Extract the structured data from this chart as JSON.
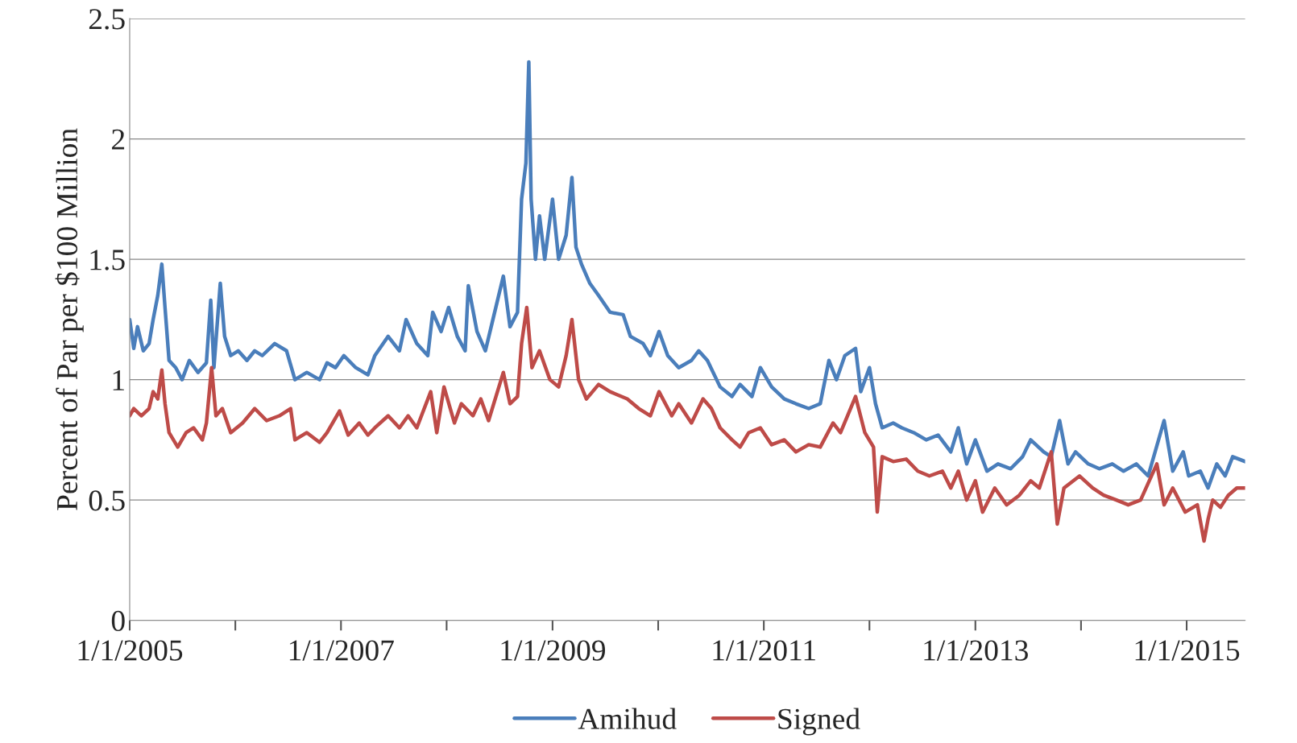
{
  "chart_data": {
    "type": "line",
    "ylabel": "Percent of Par per $100 Million",
    "xlim": [
      "2005-01-01",
      "2015-07-22"
    ],
    "ylim": [
      0,
      2.5
    ],
    "yticks": [
      0,
      0.5,
      1,
      1.5,
      2,
      2.5
    ],
    "xticks": [
      {
        "value": "2005-01-01",
        "label": "1/1/2005"
      },
      {
        "value": "2006-01-01",
        "label": null
      },
      {
        "value": "2007-01-01",
        "label": "1/1/2007"
      },
      {
        "value": "2008-01-01",
        "label": null
      },
      {
        "value": "2009-01-01",
        "label": "1/1/2009"
      },
      {
        "value": "2010-01-01",
        "label": null
      },
      {
        "value": "2011-01-01",
        "label": "1/1/2011"
      },
      {
        "value": "2012-01-01",
        "label": null
      },
      {
        "value": "2013-01-01",
        "label": "1/1/2013"
      },
      {
        "value": "2014-01-01",
        "label": null
      },
      {
        "value": "2015-01-01",
        "label": "1/1/2015"
      }
    ],
    "grid": "y",
    "legend": "bottom",
    "line_style": "solid",
    "marker": "none",
    "series": [
      {
        "name": "Amihud",
        "color": "#4a7ebb",
        "x": [
          "2005-01-01",
          "2005-01-15",
          "2005-01-28",
          "2005-02-17",
          "2005-03-09",
          "2005-03-23",
          "2005-04-08",
          "2005-04-22",
          "2005-05-03",
          "2005-05-17",
          "2005-06-09",
          "2005-07-01",
          "2005-07-26",
          "2005-08-25",
          "2005-09-23",
          "2005-10-08",
          "2005-10-19",
          "2005-11-10",
          "2005-11-25",
          "2005-12-16",
          "2006-01-11",
          "2006-02-10",
          "2006-03-09",
          "2006-04-04",
          "2006-05-17",
          "2006-06-27",
          "2006-07-26",
          "2006-09-05",
          "2006-10-19",
          "2006-11-14",
          "2006-12-13",
          "2007-01-11",
          "2007-02-21",
          "2007-04-04",
          "2007-04-28",
          "2007-06-13",
          "2007-07-22",
          "2007-08-14",
          "2007-09-20",
          "2007-10-28",
          "2007-11-14",
          "2007-12-13",
          "2008-01-08",
          "2008-02-07",
          "2008-03-05",
          "2008-03-16",
          "2008-04-15",
          "2008-05-14",
          "2008-06-09",
          "2008-07-15",
          "2008-08-07",
          "2008-09-02",
          "2008-09-16",
          "2008-10-01",
          "2008-10-11",
          "2008-10-19",
          "2008-11-03",
          "2008-11-17",
          "2008-12-05",
          "2009-01-01",
          "2009-01-22",
          "2009-02-17",
          "2009-03-09",
          "2009-03-23",
          "2009-04-11",
          "2009-05-10",
          "2009-06-09",
          "2009-07-19",
          "2009-09-02",
          "2009-09-27",
          "2009-11-10",
          "2009-12-05",
          "2010-01-04",
          "2010-02-03",
          "2010-03-13",
          "2010-04-26",
          "2010-05-21",
          "2010-06-20",
          "2010-08-03",
          "2010-09-13",
          "2010-10-11",
          "2010-11-21",
          "2010-12-20",
          "2011-01-28",
          "2011-03-13",
          "2011-04-22",
          "2011-06-05",
          "2011-07-15",
          "2011-08-14",
          "2011-09-09",
          "2011-10-08",
          "2011-11-14",
          "2011-12-02",
          "2012-01-01",
          "2012-01-22",
          "2012-02-14",
          "2012-03-23",
          "2012-04-22",
          "2012-06-02",
          "2012-07-15",
          "2012-08-25",
          "2012-10-08",
          "2012-11-03",
          "2012-12-02",
          "2013-01-01",
          "2013-02-10",
          "2013-03-20",
          "2013-05-03",
          "2013-06-13",
          "2013-07-11",
          "2013-08-25",
          "2013-09-20",
          "2013-10-19",
          "2013-11-17",
          "2013-12-13",
          "2014-01-26",
          "2014-03-05",
          "2014-04-19",
          "2014-05-28",
          "2014-07-11",
          "2014-08-21",
          "2014-10-15",
          "2014-11-14",
          "2014-12-20",
          "2015-01-08",
          "2015-02-17",
          "2015-03-16",
          "2015-04-15",
          "2015-05-14",
          "2015-06-09",
          "2015-07-22"
        ],
        "values": [
          1.25,
          1.13,
          1.22,
          1.12,
          1.15,
          1.25,
          1.35,
          1.48,
          1.3,
          1.08,
          1.05,
          1.0,
          1.08,
          1.03,
          1.07,
          1.33,
          1.05,
          1.4,
          1.18,
          1.1,
          1.12,
          1.08,
          1.12,
          1.1,
          1.15,
          1.12,
          1.0,
          1.03,
          1.0,
          1.07,
          1.05,
          1.1,
          1.05,
          1.02,
          1.1,
          1.18,
          1.12,
          1.25,
          1.15,
          1.1,
          1.28,
          1.2,
          1.3,
          1.18,
          1.12,
          1.39,
          1.2,
          1.12,
          1.25,
          1.43,
          1.22,
          1.28,
          1.75,
          1.9,
          2.32,
          1.75,
          1.5,
          1.68,
          1.5,
          1.75,
          1.5,
          1.6,
          1.84,
          1.55,
          1.48,
          1.4,
          1.35,
          1.28,
          1.27,
          1.18,
          1.15,
          1.1,
          1.2,
          1.1,
          1.05,
          1.08,
          1.12,
          1.08,
          0.97,
          0.93,
          0.98,
          0.93,
          1.05,
          0.97,
          0.92,
          0.9,
          0.88,
          0.9,
          1.08,
          1.0,
          1.1,
          1.13,
          0.95,
          1.05,
          0.9,
          0.8,
          0.82,
          0.8,
          0.78,
          0.75,
          0.77,
          0.7,
          0.8,
          0.65,
          0.75,
          0.62,
          0.65,
          0.63,
          0.68,
          0.75,
          0.7,
          0.68,
          0.83,
          0.65,
          0.7,
          0.65,
          0.63,
          0.65,
          0.62,
          0.65,
          0.6,
          0.83,
          0.62,
          0.7,
          0.6,
          0.62,
          0.55,
          0.65,
          0.6,
          0.68,
          0.66
        ]
      },
      {
        "name": "Signed",
        "color": "#be4b48",
        "x": [
          "2005-01-01",
          "2005-01-15",
          "2005-02-10",
          "2005-03-09",
          "2005-03-23",
          "2005-04-08",
          "2005-04-22",
          "2005-05-03",
          "2005-05-17",
          "2005-06-16",
          "2005-07-15",
          "2005-08-10",
          "2005-09-09",
          "2005-09-23",
          "2005-10-11",
          "2005-10-26",
          "2005-11-17",
          "2005-12-16",
          "2006-01-26",
          "2006-03-09",
          "2006-04-19",
          "2006-06-02",
          "2006-07-11",
          "2006-07-26",
          "2006-09-05",
          "2006-10-19",
          "2006-11-14",
          "2006-12-27",
          "2007-01-26",
          "2007-03-05",
          "2007-04-04",
          "2007-04-28",
          "2007-06-13",
          "2007-07-22",
          "2007-08-21",
          "2007-09-20",
          "2007-11-07",
          "2007-11-28",
          "2007-12-23",
          "2008-01-28",
          "2008-02-21",
          "2008-04-01",
          "2008-04-28",
          "2008-05-25",
          "2008-07-15",
          "2008-08-07",
          "2008-09-02",
          "2008-09-16",
          "2008-10-04",
          "2008-10-22",
          "2008-11-17",
          "2008-12-23",
          "2009-01-22",
          "2009-02-17",
          "2009-03-09",
          "2009-04-01",
          "2009-04-28",
          "2009-06-09",
          "2009-07-19",
          "2009-09-16",
          "2009-10-26",
          "2009-12-05",
          "2010-01-04",
          "2010-02-17",
          "2010-03-13",
          "2010-04-26",
          "2010-06-05",
          "2010-07-04",
          "2010-08-03",
          "2010-09-13",
          "2010-10-11",
          "2010-11-10",
          "2010-12-20",
          "2011-01-28",
          "2011-03-13",
          "2011-04-22",
          "2011-06-05",
          "2011-07-15",
          "2011-08-28",
          "2011-09-23",
          "2011-11-14",
          "2011-12-16",
          "2012-01-15",
          "2012-01-28",
          "2012-02-14",
          "2012-03-23",
          "2012-05-07",
          "2012-06-16",
          "2012-07-26",
          "2012-09-09",
          "2012-10-08",
          "2012-11-03",
          "2012-12-02",
          "2013-01-01",
          "2013-01-26",
          "2013-03-09",
          "2013-04-19",
          "2013-06-02",
          "2013-07-11",
          "2013-08-10",
          "2013-09-20",
          "2013-10-11",
          "2013-11-03",
          "2013-12-27",
          "2014-02-10",
          "2014-03-20",
          "2014-05-03",
          "2014-06-13",
          "2014-07-26",
          "2014-09-20",
          "2014-10-15",
          "2014-11-14",
          "2014-12-27",
          "2015-02-07",
          "2015-03-02",
          "2015-03-16",
          "2015-04-01",
          "2015-04-28",
          "2015-05-25",
          "2015-06-23",
          "2015-07-22"
        ],
        "values": [
          0.85,
          0.88,
          0.85,
          0.88,
          0.95,
          0.92,
          1.04,
          0.9,
          0.78,
          0.72,
          0.78,
          0.8,
          0.75,
          0.82,
          1.05,
          0.85,
          0.88,
          0.78,
          0.82,
          0.88,
          0.83,
          0.85,
          0.88,
          0.75,
          0.78,
          0.74,
          0.78,
          0.87,
          0.77,
          0.82,
          0.77,
          0.8,
          0.85,
          0.8,
          0.85,
          0.8,
          0.95,
          0.78,
          0.97,
          0.82,
          0.9,
          0.85,
          0.92,
          0.83,
          1.03,
          0.9,
          0.93,
          1.15,
          1.3,
          1.05,
          1.12,
          1.0,
          0.97,
          1.1,
          1.25,
          1.0,
          0.92,
          0.98,
          0.95,
          0.92,
          0.88,
          0.85,
          0.95,
          0.85,
          0.9,
          0.82,
          0.92,
          0.88,
          0.8,
          0.75,
          0.72,
          0.78,
          0.8,
          0.73,
          0.75,
          0.7,
          0.73,
          0.72,
          0.82,
          0.78,
          0.93,
          0.78,
          0.72,
          0.45,
          0.68,
          0.66,
          0.67,
          0.62,
          0.6,
          0.62,
          0.55,
          0.62,
          0.5,
          0.58,
          0.45,
          0.55,
          0.48,
          0.52,
          0.58,
          0.55,
          0.7,
          0.4,
          0.55,
          0.6,
          0.55,
          0.52,
          0.5,
          0.48,
          0.5,
          0.65,
          0.48,
          0.55,
          0.45,
          0.48,
          0.33,
          0.42,
          0.5,
          0.47,
          0.52,
          0.55,
          0.55
        ]
      }
    ]
  }
}
